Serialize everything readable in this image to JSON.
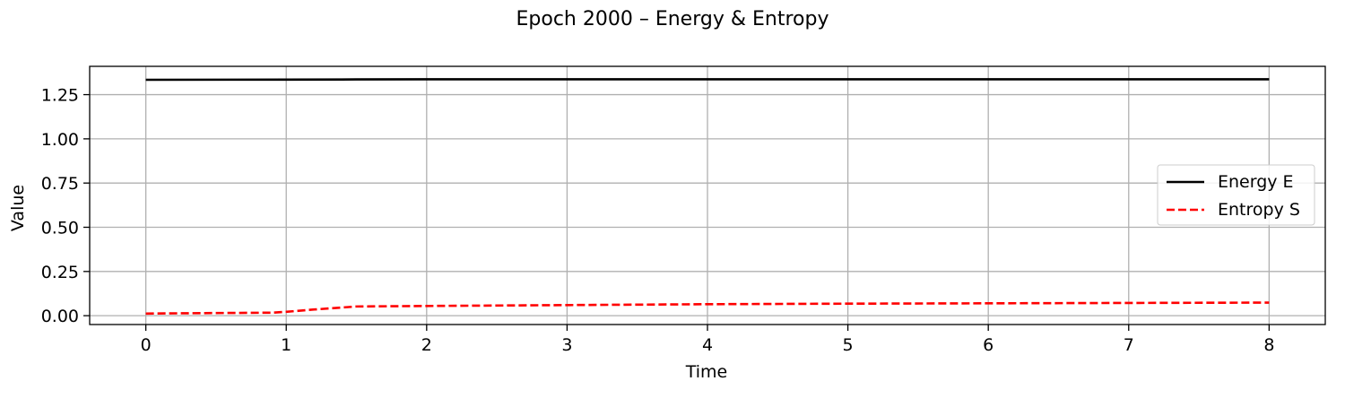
{
  "chart_data": {
    "type": "line",
    "title": "Epoch 2000 – Energy & Entropy",
    "xlabel": "Time",
    "ylabel": "Value",
    "xlim": [
      -0.4,
      8.4
    ],
    "ylim": [
      -0.05,
      1.41
    ],
    "xticks": [
      0,
      1,
      2,
      3,
      4,
      5,
      6,
      7,
      8
    ],
    "xtick_labels": [
      "0",
      "1",
      "2",
      "3",
      "4",
      "5",
      "6",
      "7",
      "8"
    ],
    "yticks": [
      0.0,
      0.25,
      0.5,
      0.75,
      1.0,
      1.25
    ],
    "ytick_labels": [
      "0.00",
      "0.25",
      "0.50",
      "0.75",
      "1.00",
      "1.25"
    ],
    "grid": true,
    "legend_position": "center-right",
    "series": [
      {
        "name": "Energy E",
        "color": "#000000",
        "style": "solid",
        "x": [
          0,
          1,
          1.5,
          2,
          3,
          4,
          5,
          6,
          7,
          8
        ],
        "y": [
          1.334,
          1.335,
          1.336,
          1.337,
          1.337,
          1.337,
          1.337,
          1.337,
          1.337,
          1.337
        ]
      },
      {
        "name": "Entropy S",
        "color": "#ff0000",
        "style": "dashed",
        "x": [
          0,
          0.5,
          0.9,
          1.0,
          1.2,
          1.5,
          2,
          3,
          4,
          5,
          6,
          7,
          8
        ],
        "y": [
          0.012,
          0.015,
          0.017,
          0.022,
          0.035,
          0.052,
          0.055,
          0.06,
          0.065,
          0.068,
          0.07,
          0.072,
          0.074
        ]
      }
    ]
  }
}
